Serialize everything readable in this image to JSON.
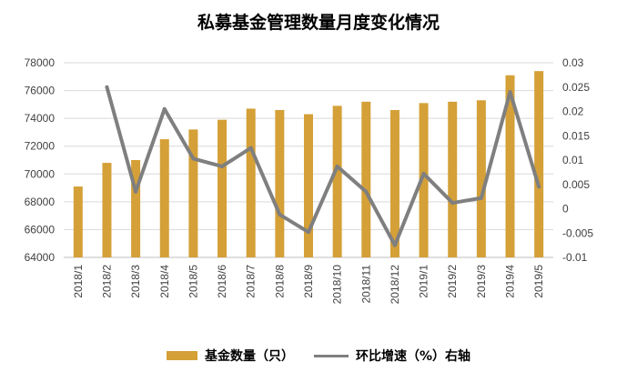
{
  "colors": {
    "bar": "#D4A037",
    "line": "#7F7F7F",
    "grid": "#D9D9D9",
    "axis": "#BFBFBF"
  },
  "chart_data": {
    "type": "bar+line",
    "title": "私募基金管理数量月度变化情况",
    "categories": [
      "2018/1",
      "2018/2",
      "2018/3",
      "2018/4",
      "2018/5",
      "2018/6",
      "2018/7",
      "2018/8",
      "2018/9",
      "2018/10",
      "2018/11",
      "2018/12",
      "2019/1",
      "2019/2",
      "2019/3",
      "2019/4",
      "2019/5"
    ],
    "series": [
      {
        "name": "基金数量（只）",
        "type": "bar",
        "axis": "left",
        "values": [
          69100,
          70800,
          71000,
          72500,
          73200,
          73900,
          74700,
          74600,
          74300,
          74900,
          75200,
          74600,
          75100,
          75200,
          75300,
          77100,
          77400
        ]
      },
      {
        "name": "环比增速（%）右轴",
        "type": "line",
        "axis": "right",
        "values": [
          null,
          0.025,
          0.0035,
          0.0205,
          0.0103,
          0.0087,
          0.0125,
          -0.0012,
          -0.0048,
          0.0087,
          0.0035,
          -0.0075,
          0.0072,
          0.0012,
          0.0022,
          0.024,
          0.0045
        ]
      }
    ],
    "y_left": {
      "min": 64000,
      "max": 78000,
      "ticks": [
        "64000",
        "66000",
        "68000",
        "70000",
        "72000",
        "74000",
        "76000",
        "78000"
      ]
    },
    "y_right": {
      "min": -0.01,
      "max": 0.03,
      "ticks": [
        "-0.01",
        "-0.005",
        "0",
        "0.005",
        "0.01",
        "0.015",
        "0.02",
        "0.025",
        "0.03"
      ]
    },
    "grid": true,
    "legend_position": "bottom"
  }
}
